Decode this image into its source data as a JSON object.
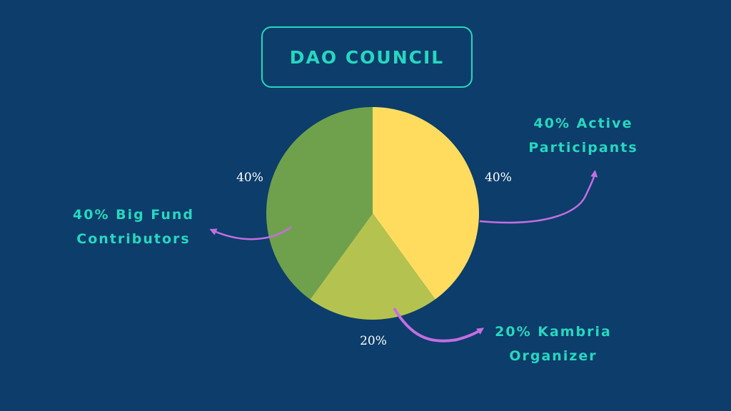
{
  "title": "DAO COUNCIL",
  "colors": {
    "background": "#0c3d6b",
    "accent": "#25d8bf",
    "arrow": "#c56ee0"
  },
  "chart_data": {
    "type": "pie",
    "title": "DAO COUNCIL",
    "slices": [
      {
        "label": "Active Participants",
        "value": 40,
        "color": "#ffdc5e",
        "pct_label": "40%"
      },
      {
        "label": "Kambria Organizer",
        "value": 20,
        "color": "#b4c350",
        "pct_label": "20%"
      },
      {
        "label": "Big Fund Contributors",
        "value": 40,
        "color": "#6fa14d",
        "pct_label": "40%"
      }
    ],
    "annotations": {
      "active": {
        "line1": "40% Active",
        "line2": "Participants"
      },
      "kambria": {
        "line1": "20% Kambria",
        "line2": "Organizer"
      },
      "bigfund": {
        "line1": "40% Big Fund",
        "line2": "Contributors"
      }
    }
  }
}
